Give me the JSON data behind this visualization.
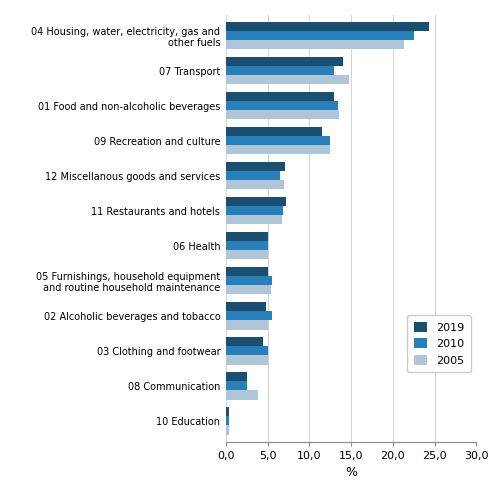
{
  "categories": [
    "10 Education",
    "08 Communication",
    "03 Clothing and footwear",
    "02 Alcoholic beverages and tobacco",
    "05 Furnishings, household equipment\nand routine household maintenance",
    "06 Health",
    "11 Restaurants and hotels",
    "12 Miscellanous goods and services",
    "09 Recreation and culture",
    "01 Food and non-alcoholic beverages",
    "07 Transport",
    "04 Housing, water, electricity, gas and\nother fuels"
  ],
  "values_2019": [
    0.4,
    2.5,
    4.4,
    4.8,
    5.0,
    5.0,
    7.2,
    7.1,
    11.5,
    13.0,
    14.0,
    24.3
  ],
  "values_2010": [
    0.4,
    2.5,
    5.1,
    5.5,
    5.5,
    5.1,
    6.8,
    6.5,
    12.5,
    13.4,
    13.0,
    22.5
  ],
  "values_2005": [
    0.4,
    3.8,
    5.0,
    5.1,
    5.4,
    5.0,
    6.7,
    7.0,
    12.5,
    13.6,
    14.7,
    21.3
  ],
  "color_2019": "#1a4f72",
  "color_2010": "#2980b9",
  "color_2005": "#aec6d8",
  "xlim": [
    0,
    30
  ],
  "xticks": [
    0,
    5,
    10,
    15,
    20,
    25,
    30
  ],
  "xtick_labels": [
    "0,0",
    "5,0",
    "10,0",
    "15,0",
    "20,0",
    "25,0",
    "30,0"
  ],
  "xlabel": "%",
  "legend_labels": [
    "2019",
    "2010",
    "2005"
  ],
  "bar_height": 0.26,
  "figure_bg": "#ffffff"
}
